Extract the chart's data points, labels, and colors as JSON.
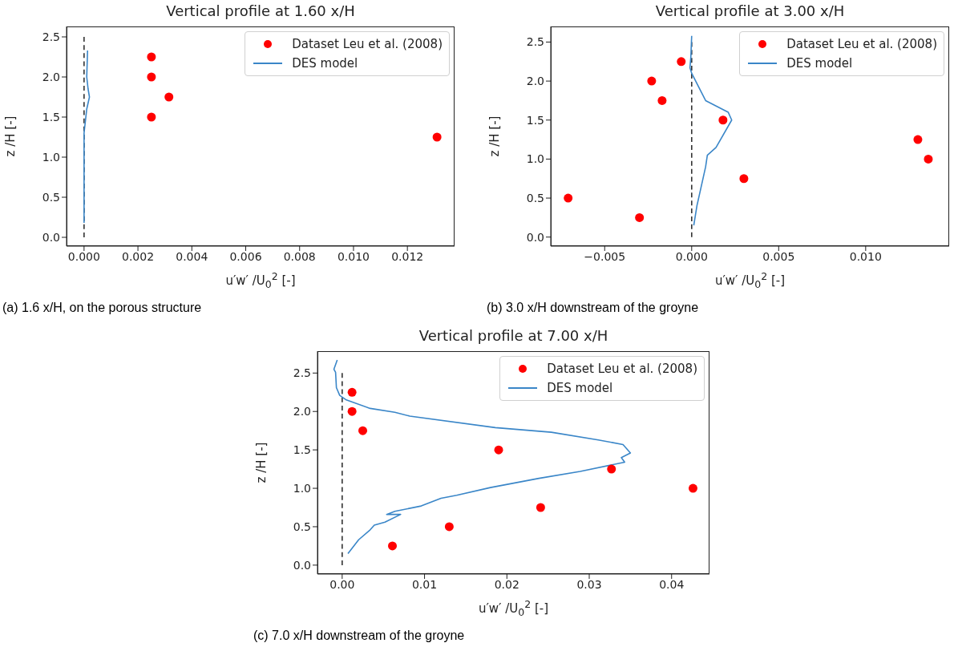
{
  "chart_data": [
    {
      "type": "scatter",
      "title": "Vertical profile at 1.60 x/H",
      "xlabel": "u′w′ /U$_{0}$$^{2}$ [-]",
      "ylabel": "z /H [-]",
      "annotations": [
        "(a) 1.6 x/H, on the porous structure"
      ],
      "legend": "top right",
      "xlim": [
        -0.00065,
        0.01375
      ],
      "ylim": [
        -0.11,
        2.63
      ],
      "xticks": [
        {
          "value": 0,
          "label": "0.000"
        },
        {
          "value": 0.002,
          "label": "0.002"
        },
        {
          "value": 0.004,
          "label": "0.004"
        },
        {
          "value": 0.006,
          "label": "0.006"
        },
        {
          "value": 0.008,
          "label": "0.008"
        },
        {
          "value": 0.01,
          "label": "0.010"
        },
        {
          "value": 0.012,
          "label": "0.012"
        }
      ],
      "yticks": [
        {
          "value": 0,
          "label": "0.0"
        },
        {
          "value": 0.5,
          "label": "0.5"
        },
        {
          "value": 1,
          "label": "1.0"
        },
        {
          "value": 1.5,
          "label": "1.5"
        },
        {
          "value": 2,
          "label": "2.0"
        },
        {
          "value": 2.5,
          "label": "2.5"
        }
      ],
      "series": [
        {
          "type": "line",
          "color": "#333333",
          "line_style": "dashed",
          "x": [
            0,
            0,
            0,
            0,
            0,
            0
          ],
          "values": [
            0,
            0.5,
            1,
            1.5,
            2,
            2.5
          ]
        },
        {
          "type": "scatter",
          "name": "Dataset Leu et al. (2008)",
          "marker": "circle",
          "color": "#ff0000",
          "x": [
            0.0025,
            0.0025,
            0.00315,
            0.0025,
            0.0131
          ],
          "values": [
            2.25,
            2.0,
            1.75,
            1.5,
            1.25
          ]
        },
        {
          "type": "line",
          "name": "DES model",
          "color": "#3a86c8",
          "line_style": "solid",
          "x": [
            0,
            0,
            0,
            5e-05,
            0.0001,
            0.0002,
            0.00015,
            0.0001,
            0.00013
          ],
          "values": [
            0.18,
            0.8,
            1.3,
            1.45,
            1.6,
            1.75,
            1.85,
            2.0,
            2.33
          ]
        }
      ]
    },
    {
      "type": "scatter",
      "title": "Vertical profile at 3.00 x/H",
      "xlabel": "u′w′ /U$_{0}$$^{2}$ [-]",
      "ylabel": "z /H [-]",
      "annotations": [
        "(b) 3.0 x/H downstream of the groyne"
      ],
      "legend": "top right",
      "xlim": [
        -0.0081,
        0.0148
      ],
      "ylim": [
        -0.116,
        2.7
      ],
      "xticks": [
        {
          "value": -0.005,
          "label": "−0.005"
        },
        {
          "value": 0,
          "label": "0.000"
        },
        {
          "value": 0.005,
          "label": "0.005"
        },
        {
          "value": 0.01,
          "label": "0.010"
        }
      ],
      "yticks": [
        {
          "value": 0,
          "label": "0.0"
        },
        {
          "value": 0.5,
          "label": "0.5"
        },
        {
          "value": 1,
          "label": "1.0"
        },
        {
          "value": 1.5,
          "label": "1.5"
        },
        {
          "value": 2,
          "label": "2.0"
        },
        {
          "value": 2.5,
          "label": "2.5"
        }
      ],
      "series": [
        {
          "type": "line",
          "color": "#333333",
          "line_style": "dashed",
          "x": [
            0,
            0,
            0,
            0,
            0,
            0
          ],
          "values": [
            0,
            0.5,
            1,
            1.5,
            2,
            2.5
          ]
        },
        {
          "type": "scatter",
          "name": "Dataset Leu et al. (2008)",
          "marker": "circle",
          "color": "#ff0000",
          "x": [
            -0.0006,
            -0.0023,
            -0.0017,
            0.0018,
            0.013,
            0.0136,
            0.003,
            -0.0071,
            -0.003
          ],
          "values": [
            2.25,
            2.0,
            1.75,
            1.5,
            1.25,
            1.0,
            0.75,
            0.5,
            0.25
          ]
        },
        {
          "type": "line",
          "name": "DES model",
          "color": "#3a86c8",
          "line_style": "solid",
          "x": [
            0.00012,
            0.0003,
            0.0005,
            0.0008,
            0.0009,
            0.0014,
            0.0023,
            0.0021,
            0.0008,
            0.0,
            -0.0001,
            -5e-05,
            0.0
          ],
          "values": [
            0.15,
            0.4,
            0.6,
            0.9,
            1.05,
            1.15,
            1.5,
            1.6,
            1.75,
            2.1,
            2.17,
            2.3,
            2.58
          ]
        }
      ]
    },
    {
      "type": "scatter",
      "title": "Vertical profile at 7.00 x/H",
      "xlabel": "u′w′ /U$_{0}$$^{2}$ [-]",
      "ylabel": "z /H [-]",
      "annotations": [
        "(c) 7.0 x/H downstream of the groyne"
      ],
      "legend": "top right",
      "xlim": [
        -0.003,
        0.0446
      ],
      "ylim": [
        -0.116,
        2.785
      ],
      "xticks": [
        {
          "value": 0,
          "label": "0.00"
        },
        {
          "value": 0.01,
          "label": "0.01"
        },
        {
          "value": 0.02,
          "label": "0.02"
        },
        {
          "value": 0.03,
          "label": "0.03"
        },
        {
          "value": 0.04,
          "label": "0.04"
        }
      ],
      "yticks": [
        {
          "value": 0,
          "label": "0.0"
        },
        {
          "value": 0.5,
          "label": "0.5"
        },
        {
          "value": 1,
          "label": "1.0"
        },
        {
          "value": 1.5,
          "label": "1.5"
        },
        {
          "value": 2,
          "label": "2.0"
        },
        {
          "value": 2.5,
          "label": "2.5"
        }
      ],
      "series": [
        {
          "type": "line",
          "color": "#333333",
          "line_style": "dashed",
          "x": [
            0,
            0,
            0,
            0,
            0,
            0
          ],
          "values": [
            0,
            0.5,
            1,
            1.5,
            2,
            2.5
          ]
        },
        {
          "type": "scatter",
          "name": "Dataset Leu et al. (2008)",
          "marker": "circle",
          "color": "#ff0000",
          "x": [
            0.0012,
            0.0012,
            0.0025,
            0.019,
            0.0327,
            0.0426,
            0.0241,
            0.013,
            0.0061
          ],
          "values": [
            2.25,
            2.0,
            1.75,
            1.5,
            1.25,
            1.0,
            0.75,
            0.5,
            0.25
          ]
        },
        {
          "type": "line",
          "name": "DES model",
          "color": "#3a86c8",
          "line_style": "solid",
          "x": [
            0.0007,
            0.002,
            0.0034,
            0.0039,
            0.0052,
            0.0071,
            0.0054,
            0.0064,
            0.0096,
            0.012,
            0.0139,
            0.018,
            0.0239,
            0.0289,
            0.0343,
            0.0339,
            0.035,
            0.0341,
            0.0311,
            0.0254,
            0.0186,
            0.0082,
            0.0064,
            0.0034,
            0.0005,
            -0.0003,
            -0.0007,
            -0.0008,
            -0.001,
            -0.0006
          ],
          "values": [
            0.15,
            0.33,
            0.46,
            0.52,
            0.56,
            0.66,
            0.66,
            0.7,
            0.77,
            0.87,
            0.91,
            1.01,
            1.13,
            1.22,
            1.34,
            1.4,
            1.46,
            1.57,
            1.63,
            1.73,
            1.79,
            1.94,
            1.99,
            2.04,
            2.15,
            2.21,
            2.31,
            2.51,
            2.55,
            2.67
          ]
        }
      ]
    }
  ]
}
